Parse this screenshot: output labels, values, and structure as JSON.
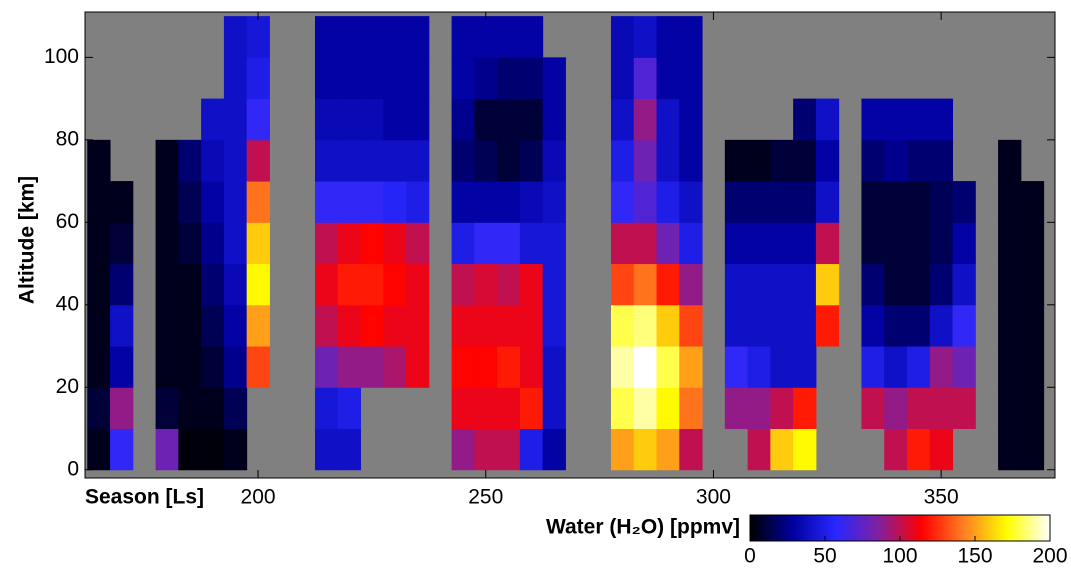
{
  "chart_data": {
    "type": "heatmap",
    "x_label": "Season [Ls]",
    "y_label": "Altitude [km]",
    "colorbar_label": "Water (H₂O) [ppmv]",
    "x": [
      165,
      170,
      175,
      180,
      185,
      190,
      195,
      200,
      205,
      210,
      215,
      220,
      225,
      230,
      235,
      240,
      245,
      250,
      255,
      260,
      265,
      270,
      275,
      280,
      285,
      290,
      295,
      300,
      305,
      310,
      315,
      320,
      325,
      330,
      335,
      340,
      345,
      350,
      355,
      360,
      365,
      370
    ],
    "y": [
      5,
      15,
      25,
      35,
      45,
      55,
      65,
      75,
      85,
      95,
      105
    ],
    "values": [
      [
        5,
        10,
        5,
        5,
        5,
        5,
        5,
        5,
        null,
        null,
        null
      ],
      [
        60,
        90,
        30,
        40,
        20,
        10,
        5,
        null,
        null,
        null,
        null
      ],
      [
        null,
        null,
        null,
        null,
        null,
        null,
        null,
        null,
        null,
        null,
        null
      ],
      [
        80,
        10,
        5,
        5,
        5,
        5,
        5,
        5,
        null,
        null,
        null
      ],
      [
        2,
        5,
        5,
        5,
        5,
        10,
        15,
        20,
        null,
        null,
        null
      ],
      [
        2,
        5,
        10,
        15,
        20,
        25,
        30,
        35,
        40,
        null,
        null
      ],
      [
        5,
        15,
        25,
        30,
        35,
        40,
        40,
        40,
        40,
        40,
        40
      ],
      [
        null,
        null,
        130,
        150,
        170,
        160,
        140,
        100,
        60,
        50,
        45
      ],
      [
        null,
        null,
        null,
        null,
        null,
        null,
        null,
        null,
        null,
        null,
        null
      ],
      [
        null,
        null,
        null,
        null,
        null,
        null,
        null,
        null,
        null,
        null,
        null
      ],
      [
        40,
        45,
        80,
        100,
        110,
        100,
        60,
        40,
        35,
        30,
        30
      ],
      [
        40,
        50,
        90,
        110,
        120,
        110,
        60,
        40,
        35,
        30,
        30
      ],
      [
        null,
        null,
        90,
        115,
        120,
        115,
        60,
        40,
        35,
        30,
        30
      ],
      [
        null,
        null,
        95,
        110,
        115,
        110,
        55,
        40,
        30,
        30,
        30
      ],
      [
        null,
        null,
        110,
        110,
        110,
        100,
        50,
        40,
        30,
        30,
        30
      ],
      [
        null,
        null,
        null,
        null,
        null,
        null,
        null,
        null,
        null,
        null,
        null
      ],
      [
        90,
        110,
        115,
        110,
        100,
        50,
        30,
        20,
        25,
        30,
        30
      ],
      [
        100,
        110,
        115,
        110,
        105,
        60,
        30,
        15,
        10,
        25,
        30
      ],
      [
        100,
        110,
        120,
        110,
        100,
        60,
        30,
        10,
        10,
        20,
        30
      ],
      [
        50,
        120,
        110,
        110,
        110,
        45,
        35,
        15,
        10,
        20,
        30
      ],
      [
        30,
        40,
        40,
        45,
        45,
        45,
        40,
        35,
        30,
        30,
        null
      ],
      [
        null,
        null,
        null,
        null,
        null,
        null,
        null,
        null,
        null,
        null,
        null
      ],
      [
        null,
        null,
        null,
        null,
        null,
        null,
        null,
        null,
        null,
        null,
        null
      ],
      [
        150,
        180,
        190,
        180,
        130,
        100,
        60,
        50,
        40,
        35,
        35
      ],
      [
        160,
        190,
        200,
        185,
        140,
        100,
        70,
        80,
        90,
        70,
        40
      ],
      [
        150,
        170,
        180,
        160,
        120,
        80,
        50,
        40,
        40,
        30,
        30
      ],
      [
        100,
        140,
        150,
        130,
        90,
        50,
        40,
        30,
        30,
        30,
        30
      ],
      [
        null,
        null,
        null,
        null,
        null,
        null,
        null,
        null,
        null,
        null,
        null
      ],
      [
        null,
        90,
        60,
        40,
        40,
        30,
        20,
        5,
        null,
        null,
        null
      ],
      [
        100,
        90,
        50,
        40,
        40,
        30,
        20,
        5,
        null,
        null,
        null
      ],
      [
        160,
        100,
        40,
        40,
        40,
        30,
        20,
        10,
        null,
        null,
        null
      ],
      [
        170,
        120,
        40,
        40,
        40,
        30,
        20,
        10,
        20,
        null,
        null
      ],
      [
        null,
        null,
        null,
        120,
        160,
        100,
        40,
        30,
        40,
        null,
        null
      ],
      [
        null,
        null,
        null,
        null,
        null,
        null,
        null,
        null,
        null,
        null,
        null
      ],
      [
        null,
        100,
        50,
        30,
        20,
        10,
        10,
        20,
        30,
        null,
        null
      ],
      [
        100,
        90,
        40,
        20,
        10,
        10,
        10,
        25,
        30,
        null,
        null
      ],
      [
        120,
        100,
        50,
        20,
        10,
        10,
        10,
        20,
        30,
        null,
        null
      ],
      [
        110,
        100,
        90,
        40,
        20,
        15,
        15,
        20,
        30,
        null,
        null
      ],
      [
        null,
        100,
        80,
        60,
        40,
        30,
        20,
        null,
        null,
        null,
        null
      ],
      [
        null,
        null,
        null,
        null,
        null,
        null,
        null,
        null,
        null,
        null,
        null
      ],
      [
        5,
        5,
        5,
        5,
        5,
        5,
        5,
        5,
        null,
        null,
        null
      ],
      [
        5,
        5,
        5,
        5,
        5,
        5,
        5,
        null,
        null,
        null,
        null
      ]
    ],
    "xlim": [
      162,
      375
    ],
    "ylim": [
      -2,
      111
    ],
    "xticks": [
      200,
      250,
      300,
      350
    ],
    "yticks": [
      0,
      20,
      40,
      60,
      80,
      100
    ],
    "clim": [
      0,
      200
    ],
    "cticks": [
      0,
      50,
      100,
      150,
      200
    ],
    "colormap": [
      "#000000",
      "#0000a0",
      "#2828ff",
      "#8020a0",
      "#ff0000",
      "#ff8020",
      "#ffff00",
      "#ffffff"
    ],
    "background": "#808080"
  }
}
